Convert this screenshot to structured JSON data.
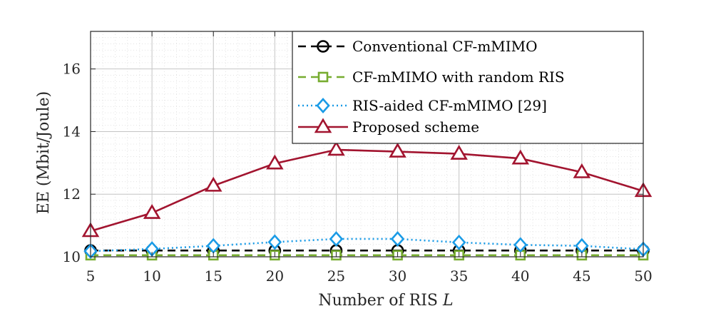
{
  "chart_data": {
    "type": "line",
    "xlabel": "Number of RIS",
    "xlabel_var": "L",
    "ylabel": "EE (Mbit/Joule)",
    "x": [
      5,
      10,
      15,
      20,
      25,
      30,
      35,
      40,
      45,
      50
    ],
    "x_ticks": [
      "5",
      "10",
      "15",
      "20",
      "25",
      "30",
      "35",
      "40",
      "45",
      "50"
    ],
    "y_ticks": [
      "10",
      "12",
      "14",
      "16"
    ],
    "xlim": [
      5,
      50
    ],
    "ylim": [
      10,
      17.2
    ],
    "grid": true,
    "minor_grid": true,
    "legend_position": "top-right",
    "series": [
      {
        "name": "Conventional CF-mMIMO",
        "color": "#000000",
        "line_style": "dashed",
        "marker": "circle-minus",
        "values": [
          10.2,
          10.2,
          10.2,
          10.2,
          10.2,
          10.2,
          10.2,
          10.2,
          10.2,
          10.2
        ]
      },
      {
        "name": "CF-mMIMO with random RIS",
        "color": "#77ac30",
        "line_style": "dashed",
        "marker": "square",
        "values": [
          10.05,
          10.05,
          10.05,
          10.05,
          10.05,
          10.05,
          10.05,
          10.05,
          10.05,
          10.05
        ]
      },
      {
        "name": "RIS-aided CF-mMIMO [29]",
        "color": "#1a9be6",
        "line_style": "dotted",
        "marker": "diamond",
        "values": [
          10.18,
          10.25,
          10.35,
          10.47,
          10.57,
          10.57,
          10.46,
          10.38,
          10.35,
          10.24
        ]
      },
      {
        "name": "Proposed scheme",
        "color": "#a2142f",
        "line_style": "solid",
        "marker": "triangle",
        "values": [
          10.82,
          11.4,
          12.27,
          12.98,
          13.42,
          13.36,
          13.29,
          13.14,
          12.7,
          12.1
        ]
      }
    ]
  }
}
